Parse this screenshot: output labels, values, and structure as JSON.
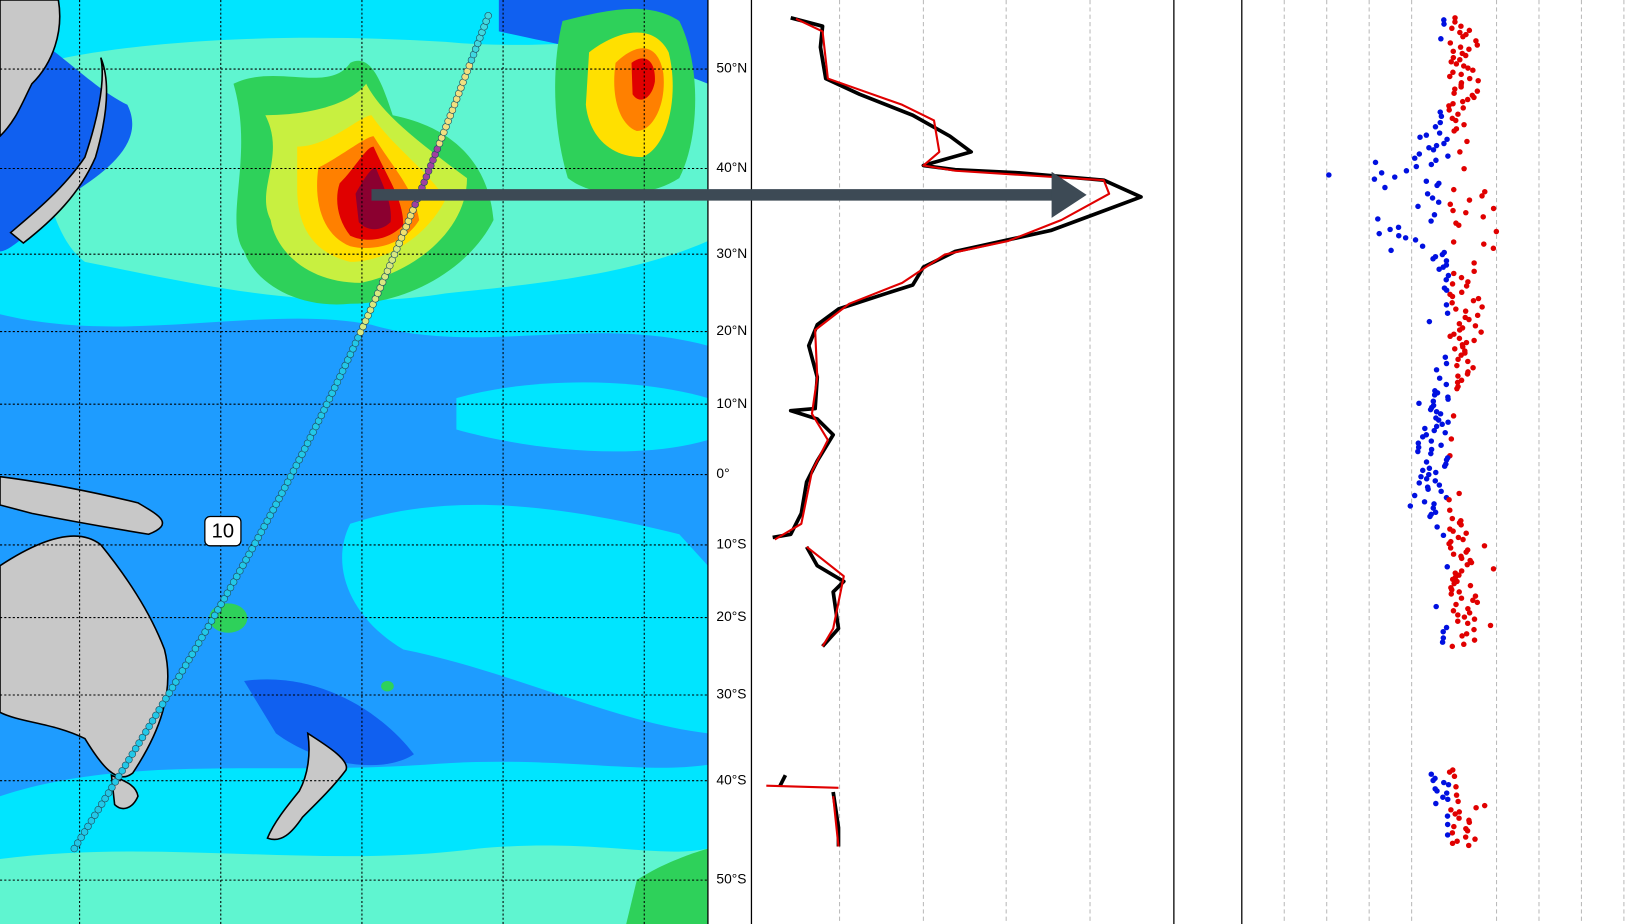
{
  "map": {
    "track_label": "10"
  },
  "lat_ticks": [
    {
      "value": 50,
      "label": "50°N"
    },
    {
      "value": 40,
      "label": "40°N"
    },
    {
      "value": 30,
      "label": "30°N"
    },
    {
      "value": 20,
      "label": "20°N"
    },
    {
      "value": 10,
      "label": "10°N"
    },
    {
      "value": 0,
      "label": "0°"
    },
    {
      "value": -10,
      "label": "10°S"
    },
    {
      "value": -20,
      "label": "20°S"
    },
    {
      "value": -30,
      "label": "30°S"
    },
    {
      "value": -40,
      "label": "40°S"
    },
    {
      "value": -50,
      "label": "50°S"
    }
  ]
}
